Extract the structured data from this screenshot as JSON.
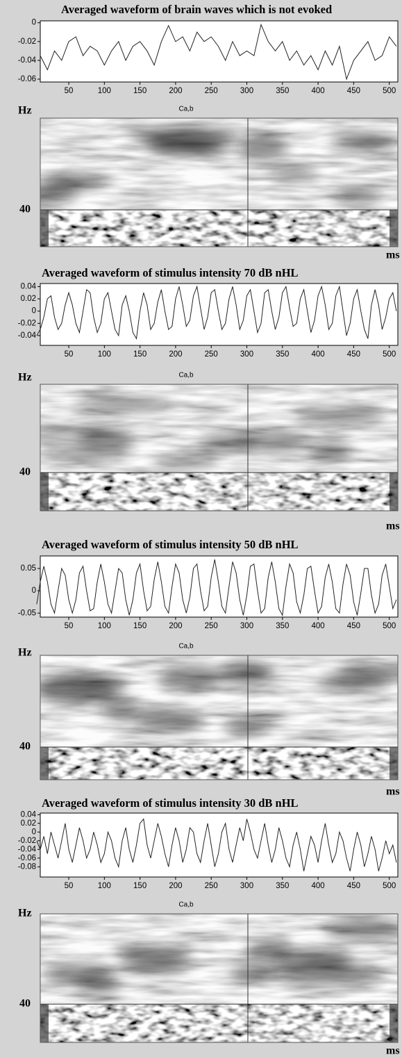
{
  "chart_data": [
    {
      "type": "line",
      "title": "Averaged waveform of brain waves which is not evoked",
      "color": "#222222",
      "x": [
        10,
        20,
        30,
        40,
        50,
        60,
        70,
        80,
        90,
        100,
        110,
        120,
        130,
        140,
        150,
        160,
        170,
        180,
        190,
        200,
        210,
        220,
        230,
        240,
        250,
        260,
        270,
        280,
        290,
        300,
        310,
        320,
        330,
        340,
        350,
        360,
        370,
        380,
        390,
        400,
        410,
        420,
        430,
        440,
        450,
        460,
        470,
        480,
        490,
        500,
        510
      ],
      "values": [
        -0.035,
        -0.05,
        -0.03,
        -0.04,
        -0.02,
        -0.015,
        -0.035,
        -0.025,
        -0.03,
        -0.045,
        -0.03,
        -0.02,
        -0.04,
        -0.025,
        -0.02,
        -0.03,
        -0.045,
        -0.02,
        -0.003,
        -0.02,
        -0.015,
        -0.03,
        -0.01,
        -0.02,
        -0.015,
        -0.025,
        -0.04,
        -0.02,
        -0.035,
        -0.03,
        -0.035,
        -0.002,
        -0.02,
        -0.03,
        -0.02,
        -0.04,
        -0.03,
        -0.045,
        -0.035,
        -0.05,
        -0.03,
        -0.045,
        -0.025,
        -0.06,
        -0.04,
        -0.03,
        -0.02,
        -0.04,
        -0.035,
        -0.015,
        -0.025
      ],
      "xlim": [
        10,
        512
      ],
      "xticks": [
        50,
        100,
        150,
        200,
        250,
        300,
        350,
        400,
        450,
        500
      ],
      "ylim": [
        -0.063,
        0.002
      ],
      "yticks": [
        0,
        -0.02,
        -0.04,
        -0.06
      ]
    },
    {
      "type": "scalogram",
      "title": "Ca,b",
      "y_label": "Hz",
      "ytick_label": "40",
      "x_label": "ms"
    },
    {
      "type": "line",
      "title": "Averaged waveform of stimulus intensity 70 dB nHL",
      "color": "#222222",
      "x": [
        5,
        10,
        15,
        20,
        25,
        30,
        35,
        40,
        45,
        50,
        55,
        60,
        65,
        70,
        75,
        80,
        85,
        90,
        95,
        100,
        105,
        110,
        115,
        120,
        125,
        130,
        135,
        140,
        145,
        150,
        155,
        160,
        165,
        170,
        175,
        180,
        185,
        190,
        195,
        200,
        205,
        210,
        215,
        220,
        225,
        230,
        235,
        240,
        245,
        250,
        255,
        260,
        265,
        270,
        275,
        280,
        285,
        290,
        295,
        300,
        305,
        310,
        315,
        320,
        325,
        330,
        335,
        340,
        345,
        350,
        355,
        360,
        365,
        370,
        375,
        380,
        385,
        390,
        395,
        400,
        405,
        410,
        415,
        420,
        425,
        430,
        435,
        440,
        445,
        450,
        455,
        460,
        465,
        470,
        475,
        480,
        485,
        490,
        495,
        500,
        505,
        510
      ],
      "values": [
        -0.04,
        -0.03,
        -0.01,
        0.02,
        0.025,
        -0.01,
        -0.03,
        -0.02,
        0.01,
        0.03,
        0.01,
        -0.02,
        -0.035,
        0.0,
        0.035,
        0.03,
        -0.01,
        -0.035,
        -0.02,
        0.02,
        0.03,
        0.0,
        -0.03,
        -0.04,
        0.01,
        0.025,
        0.0,
        -0.035,
        -0.045,
        0.0,
        0.03,
        0.01,
        -0.03,
        -0.02,
        0.015,
        0.035,
        0.0,
        -0.03,
        -0.025,
        0.02,
        0.04,
        0.01,
        -0.025,
        -0.015,
        0.025,
        0.04,
        0.005,
        -0.03,
        -0.01,
        0.03,
        0.035,
        0.0,
        -0.03,
        -0.02,
        0.02,
        0.04,
        0.01,
        -0.03,
        -0.015,
        0.025,
        0.035,
        0.0,
        -0.035,
        -0.02,
        0.03,
        0.035,
        0.0,
        -0.03,
        -0.01,
        0.03,
        0.04,
        0.005,
        -0.025,
        -0.02,
        0.02,
        0.035,
        0.0,
        -0.035,
        -0.015,
        0.025,
        0.04,
        0.01,
        -0.03,
        -0.02,
        0.025,
        0.04,
        0.0,
        -0.04,
        -0.02,
        0.02,
        0.035,
        0.0,
        -0.03,
        -0.045,
        0.01,
        0.035,
        0.01,
        -0.03,
        -0.01,
        0.02,
        0.03,
        0.0
      ],
      "xlim": [
        10,
        512
      ],
      "xticks": [
        50,
        100,
        150,
        200,
        250,
        300,
        350,
        400,
        450,
        500
      ],
      "ylim": [
        -0.056,
        0.045
      ],
      "yticks": [
        0.04,
        0.02,
        0,
        -0.02,
        -0.04
      ]
    },
    {
      "type": "scalogram",
      "title": "Ca,b",
      "y_label": "Hz",
      "ytick_label": "40",
      "x_label": "ms"
    },
    {
      "type": "line",
      "title": "Averaged waveform of stimulus intensity 50 dB nHL",
      "color": "#222222",
      "x": [
        5,
        10,
        15,
        20,
        25,
        30,
        35,
        40,
        45,
        50,
        55,
        60,
        65,
        70,
        75,
        80,
        85,
        90,
        95,
        100,
        105,
        110,
        115,
        120,
        125,
        130,
        135,
        140,
        145,
        150,
        155,
        160,
        165,
        170,
        175,
        180,
        185,
        190,
        195,
        200,
        205,
        210,
        215,
        220,
        225,
        230,
        235,
        240,
        245,
        250,
        255,
        260,
        265,
        270,
        275,
        280,
        285,
        290,
        295,
        300,
        305,
        310,
        315,
        320,
        325,
        330,
        335,
        340,
        345,
        350,
        355,
        360,
        365,
        370,
        375,
        380,
        385,
        390,
        395,
        400,
        405,
        410,
        415,
        420,
        425,
        430,
        435,
        440,
        445,
        450,
        455,
        460,
        465,
        470,
        475,
        480,
        485,
        490,
        495,
        500,
        505,
        510
      ],
      "values": [
        -0.03,
        0.02,
        0.055,
        0.02,
        -0.03,
        -0.05,
        0.0,
        0.05,
        0.035,
        -0.02,
        -0.05,
        -0.02,
        0.04,
        0.055,
        0.0,
        -0.045,
        -0.04,
        0.02,
        0.06,
        0.02,
        -0.03,
        -0.05,
        0.0,
        0.05,
        0.04,
        -0.02,
        -0.055,
        -0.02,
        0.04,
        0.06,
        0.0,
        -0.045,
        -0.035,
        0.025,
        0.065,
        0.02,
        -0.035,
        -0.05,
        0.01,
        0.06,
        0.04,
        -0.02,
        -0.05,
        -0.015,
        0.05,
        0.06,
        0.0,
        -0.045,
        -0.035,
        0.03,
        0.07,
        0.02,
        -0.035,
        -0.05,
        0.01,
        0.065,
        0.04,
        -0.02,
        -0.055,
        -0.01,
        0.055,
        0.06,
        0.0,
        -0.05,
        -0.04,
        0.03,
        0.065,
        0.02,
        -0.04,
        -0.055,
        0.01,
        0.06,
        0.04,
        -0.025,
        -0.05,
        -0.01,
        0.05,
        0.055,
        0.0,
        -0.05,
        -0.035,
        0.03,
        0.06,
        0.02,
        -0.04,
        -0.05,
        0.015,
        0.06,
        0.035,
        -0.025,
        -0.055,
        -0.005,
        0.05,
        0.05,
        -0.01,
        -0.05,
        -0.03,
        0.035,
        0.06,
        0.01,
        -0.04,
        -0.02
      ],
      "xlim": [
        10,
        512
      ],
      "xticks": [
        50,
        100,
        150,
        200,
        250,
        300,
        350,
        400,
        450,
        500
      ],
      "ylim": [
        -0.059,
        0.078
      ],
      "yticks": [
        0.05,
        0,
        -0.05
      ]
    },
    {
      "type": "scalogram",
      "title": "Ca,b",
      "y_label": "Hz",
      "ytick_label": "40",
      "x_label": "ms"
    },
    {
      "type": "line",
      "title": "Averaged waveform of stimulus intensity 30 dB nHL",
      "color": "#222222",
      "x": [
        5,
        10,
        15,
        20,
        25,
        30,
        35,
        40,
        45,
        50,
        55,
        60,
        65,
        70,
        75,
        80,
        85,
        90,
        95,
        100,
        105,
        110,
        115,
        120,
        125,
        130,
        135,
        140,
        145,
        150,
        155,
        160,
        165,
        170,
        175,
        180,
        185,
        190,
        195,
        200,
        205,
        210,
        215,
        220,
        225,
        230,
        235,
        240,
        245,
        250,
        255,
        260,
        265,
        270,
        275,
        280,
        285,
        290,
        295,
        300,
        305,
        310,
        315,
        320,
        325,
        330,
        335,
        340,
        345,
        350,
        355,
        360,
        365,
        370,
        375,
        380,
        385,
        390,
        395,
        400,
        405,
        410,
        415,
        420,
        425,
        430,
        435,
        440,
        445,
        450,
        455,
        460,
        465,
        470,
        475,
        480,
        485,
        490,
        495,
        500,
        505,
        510
      ],
      "values": [
        -0.02,
        -0.04,
        -0.01,
        -0.05,
        0.0,
        -0.03,
        -0.06,
        -0.02,
        0.02,
        -0.04,
        -0.07,
        -0.03,
        0.01,
        -0.02,
        -0.06,
        -0.04,
        0.0,
        -0.03,
        -0.07,
        -0.05,
        0.0,
        -0.02,
        -0.06,
        -0.08,
        -0.02,
        0.01,
        -0.04,
        -0.07,
        -0.03,
        0.02,
        0.03,
        -0.03,
        -0.06,
        -0.02,
        0.02,
        -0.01,
        -0.05,
        -0.08,
        -0.03,
        0.01,
        -0.02,
        -0.07,
        -0.04,
        0.01,
        0.0,
        -0.05,
        -0.07,
        -0.02,
        0.02,
        -0.03,
        -0.08,
        -0.05,
        0.0,
        0.02,
        -0.04,
        -0.07,
        -0.03,
        0.01,
        -0.02,
        0.03,
        0.0,
        -0.04,
        -0.06,
        -0.02,
        0.02,
        -0.03,
        -0.07,
        -0.04,
        0.01,
        -0.02,
        -0.06,
        -0.08,
        -0.03,
        0.0,
        -0.04,
        -0.09,
        -0.05,
        -0.01,
        -0.03,
        -0.07,
        -0.02,
        0.02,
        -0.03,
        -0.07,
        -0.05,
        0.0,
        -0.02,
        -0.06,
        -0.09,
        -0.04,
        0.0,
        -0.03,
        -0.08,
        -0.05,
        -0.01,
        -0.04,
        -0.09,
        -0.06,
        -0.02,
        -0.05,
        -0.03,
        -0.07
      ],
      "xlim": [
        10,
        512
      ],
      "xticks": [
        50,
        100,
        150,
        200,
        250,
        300,
        350,
        400,
        450,
        500
      ],
      "ylim": [
        -0.1035,
        0.0436
      ],
      "yticks": [
        0.04,
        0.02,
        0,
        -0.02,
        -0.04,
        -0.06,
        -0.08
      ]
    },
    {
      "type": "scalogram",
      "title": "Ca,b",
      "y_label": "Hz",
      "ytick_label": "40",
      "x_label": "ms"
    }
  ]
}
